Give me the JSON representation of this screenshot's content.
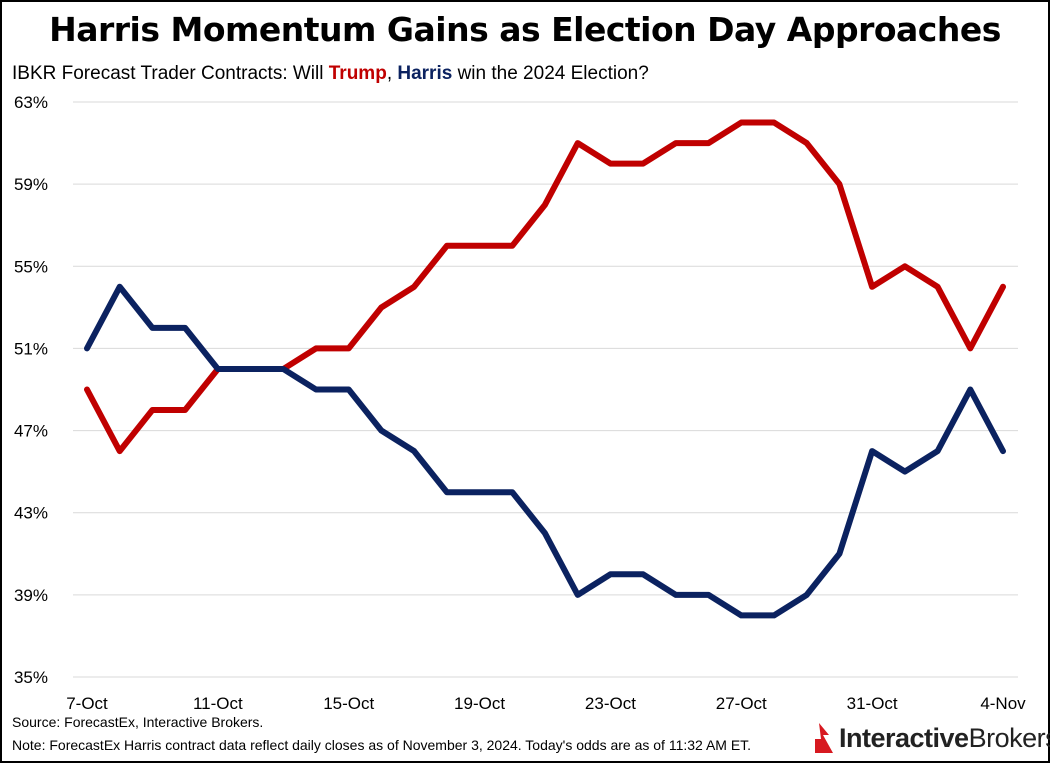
{
  "title": "Harris Momentum Gains as Election Day Approaches",
  "subtitle": {
    "prefix": "IBKR Forecast Trader Contracts: Will ",
    "trump": "Trump",
    "sep": ", ",
    "harris": "Harris",
    "suffix": " win the 2024 Election?"
  },
  "source": "Source: ForecastEx, Interactive Brokers.",
  "note": "Note: ForecastEx Harris contract data reflect daily closes as of November 3, 2024. Today's odds are as of 11:32 AM ET.",
  "logo": {
    "part1": "Interactive",
    "part2": "Brokers",
    "color": "#d71920"
  },
  "chart_data": {
    "type": "line",
    "x": [
      "7-Oct",
      "8-Oct",
      "9-Oct",
      "10-Oct",
      "11-Oct",
      "12-Oct",
      "13-Oct",
      "14-Oct",
      "15-Oct",
      "16-Oct",
      "17-Oct",
      "18-Oct",
      "19-Oct",
      "20-Oct",
      "21-Oct",
      "22-Oct",
      "23-Oct",
      "24-Oct",
      "25-Oct",
      "26-Oct",
      "27-Oct",
      "28-Oct",
      "29-Oct",
      "30-Oct",
      "31-Oct",
      "1-Nov",
      "2-Nov",
      "3-Nov",
      "4-Nov"
    ],
    "x_tick_labels": [
      "7-Oct",
      "11-Oct",
      "15-Oct",
      "19-Oct",
      "23-Oct",
      "27-Oct",
      "31-Oct",
      "4-Nov"
    ],
    "y_tick_labels": [
      "35%",
      "39%",
      "43%",
      "47%",
      "51%",
      "55%",
      "59%",
      "63%"
    ],
    "ylim": [
      35,
      63
    ],
    "grid": true,
    "series": [
      {
        "name": "Trump",
        "color": "#c00000",
        "values": [
          49,
          46,
          48,
          48,
          50,
          50,
          50,
          51,
          51,
          53,
          54,
          56,
          56,
          56,
          58,
          61,
          60,
          60,
          61,
          61,
          62,
          62,
          61,
          59,
          54,
          55,
          54,
          51,
          54
        ]
      },
      {
        "name": "Harris",
        "color": "#0b2260",
        "values": [
          51,
          54,
          52,
          52,
          50,
          50,
          50,
          49,
          49,
          47,
          46,
          44,
          44,
          44,
          42,
          39,
          40,
          40,
          39,
          39,
          38,
          38,
          39,
          41,
          46,
          45,
          46,
          49,
          46
        ]
      }
    ]
  }
}
